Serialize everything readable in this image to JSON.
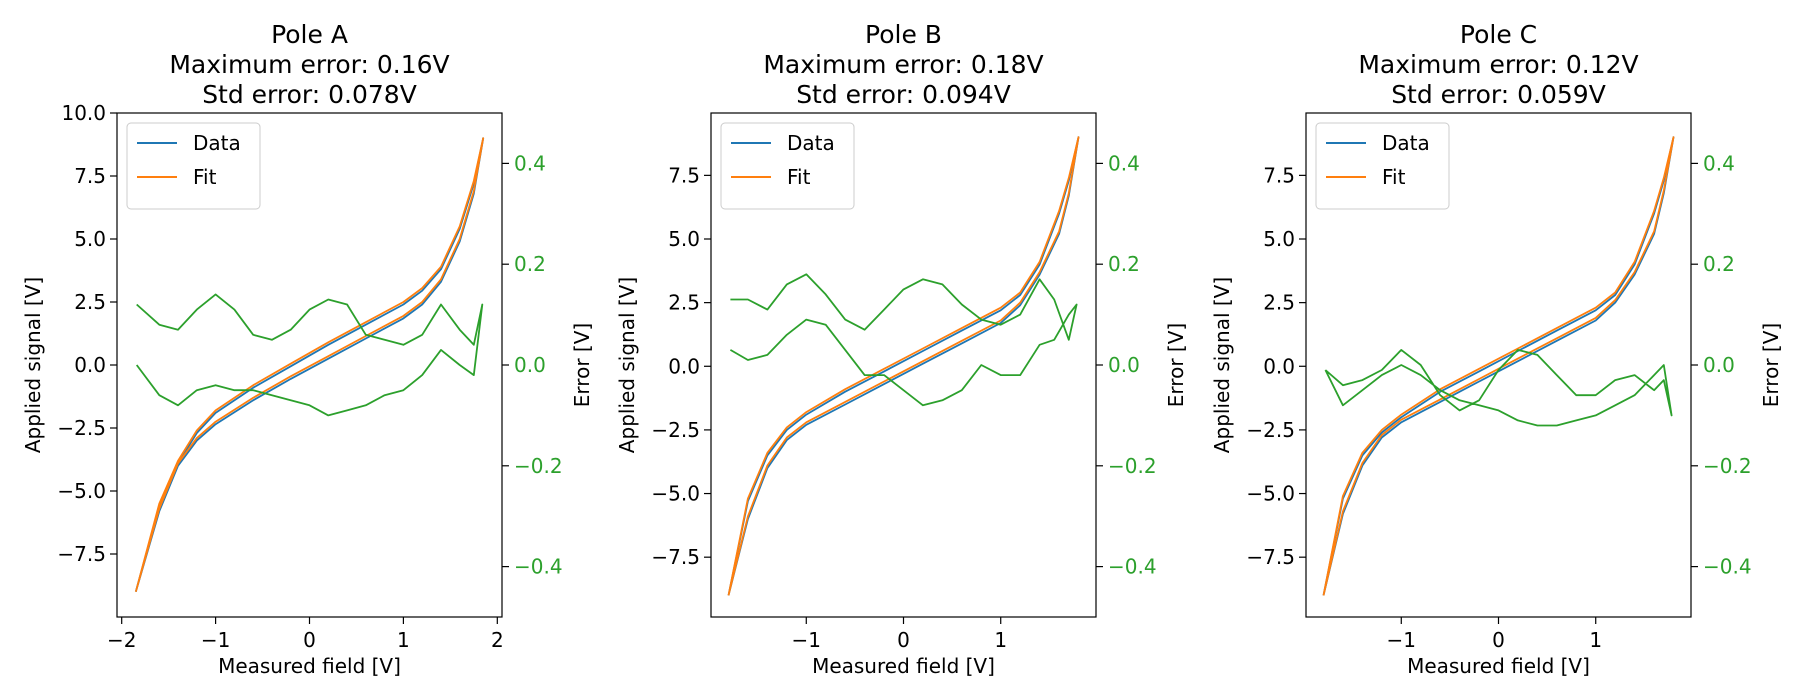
{
  "colors": {
    "data": "#1f77b4",
    "fit": "#ff7f0e",
    "error": "#2ca02c",
    "axis": "#000000",
    "background": "#ffffff"
  },
  "chart_data": [
    {
      "type": "line",
      "title_lines": [
        "Pole A",
        "Maximum error: 0.16V",
        "Std error: 0.078V"
      ],
      "xlabel": "Measured field [V]",
      "ylabel": "Applied signal [V]",
      "ylabel_right": "Error [V]",
      "xlim": [
        -2.05,
        2.05
      ],
      "ylim": [
        -10.0,
        10.0
      ],
      "ylim_right": [
        -0.5,
        0.5
      ],
      "xticks": [
        -2,
        -1,
        0,
        1,
        2
      ],
      "xtick_labels": [
        "−2",
        "−1",
        "0",
        "1",
        "2"
      ],
      "yticks": [
        -7.5,
        -5.0,
        -2.5,
        0.0,
        2.5,
        5.0,
        7.5,
        10.0
      ],
      "ytick_labels": [
        "−7.5",
        "−5.0",
        "−2.5",
        "0.0",
        "2.5",
        "5.0",
        "7.5",
        "10.0"
      ],
      "yticks_right": [
        -0.4,
        -0.2,
        0.0,
        0.2,
        0.4
      ],
      "ytick_labels_right": [
        "−0.4",
        "−0.2",
        "0.0",
        "0.2",
        "0.4"
      ],
      "legend": {
        "position": "top-left",
        "entries": [
          "Data",
          "Fit"
        ]
      },
      "grid": false,
      "series": [
        {
          "name": "Data",
          "axis": "left",
          "x": [
            -1.85,
            -1.6,
            -1.4,
            -1.2,
            -1.0,
            -0.6,
            -0.2,
            0.2,
            0.6,
            1.0,
            1.2,
            1.4,
            1.6,
            1.75,
            1.85,
            1.75,
            1.6,
            1.4,
            1.2,
            1.0,
            0.6,
            0.2,
            -0.2,
            -0.6,
            -1.0,
            -1.2,
            -1.4,
            -1.6,
            -1.85
          ],
          "y": [
            -9.0,
            -5.6,
            -3.9,
            -2.7,
            -1.9,
            -0.9,
            -0.05,
            0.8,
            1.6,
            2.4,
            2.95,
            3.8,
            5.4,
            7.2,
            9.0,
            6.8,
            4.9,
            3.3,
            2.4,
            1.85,
            1.05,
            0.25,
            -0.55,
            -1.4,
            -2.35,
            -3.0,
            -4.0,
            -5.8,
            -9.0
          ]
        },
        {
          "name": "Fit",
          "axis": "left",
          "x": [
            -1.85,
            -1.6,
            -1.4,
            -1.2,
            -1.0,
            -0.6,
            -0.2,
            0.2,
            0.6,
            1.0,
            1.2,
            1.4,
            1.6,
            1.75,
            1.85,
            1.75,
            1.6,
            1.4,
            1.2,
            1.0,
            0.6,
            0.2,
            -0.2,
            -0.6,
            -1.0,
            -1.2,
            -1.4,
            -1.6,
            -1.85
          ],
          "y": [
            -9.0,
            -5.5,
            -3.8,
            -2.6,
            -1.8,
            -0.8,
            0.05,
            0.9,
            1.7,
            2.5,
            3.05,
            3.9,
            5.5,
            7.3,
            9.0,
            6.9,
            5.0,
            3.4,
            2.5,
            1.95,
            1.15,
            0.35,
            -0.45,
            -1.3,
            -2.25,
            -2.9,
            -3.9,
            -5.7,
            -9.0
          ]
        },
        {
          "name": "Error",
          "axis": "right",
          "x": [
            -1.84,
            -1.6,
            -1.4,
            -1.2,
            -1.0,
            -0.8,
            -0.6,
            -0.4,
            -0.2,
            0.0,
            0.2,
            0.4,
            0.6,
            0.8,
            1.0,
            1.2,
            1.4,
            1.6,
            1.75,
            1.84,
            1.75,
            1.6,
            1.4,
            1.2,
            1.0,
            0.8,
            0.6,
            0.4,
            0.2,
            0.0,
            -0.2,
            -0.4,
            -0.6,
            -0.8,
            -1.0,
            -1.2,
            -1.4,
            -1.6,
            -1.84
          ],
          "y": [
            0.12,
            0.08,
            0.07,
            0.11,
            0.14,
            0.11,
            0.06,
            0.05,
            0.07,
            0.11,
            0.13,
            0.12,
            0.06,
            0.05,
            0.04,
            0.06,
            0.12,
            0.07,
            0.04,
            0.12,
            -0.02,
            0.0,
            0.03,
            -0.02,
            -0.05,
            -0.06,
            -0.08,
            -0.09,
            -0.1,
            -0.08,
            -0.07,
            -0.06,
            -0.05,
            -0.05,
            -0.04,
            -0.05,
            -0.08,
            -0.06,
            0.0
          ]
        }
      ]
    },
    {
      "type": "line",
      "title_lines": [
        "Pole B",
        "Maximum error: 0.18V",
        "Std error: 0.094V"
      ],
      "xlabel": "Measured field [V]",
      "ylabel": "Applied signal [V]",
      "ylabel_right": "Error [V]",
      "xlim": [
        -1.98,
        1.98
      ],
      "ylim": [
        -9.85,
        9.95
      ],
      "ylim_right": [
        -0.5,
        0.5
      ],
      "xticks": [
        -1,
        0,
        1
      ],
      "xtick_labels": [
        "−1",
        "0",
        "1"
      ],
      "yticks": [
        -7.5,
        -5.0,
        -2.5,
        0.0,
        2.5,
        5.0,
        7.5
      ],
      "ytick_labels": [
        "−7.5",
        "−5.0",
        "−2.5",
        "0.0",
        "2.5",
        "5.0",
        "7.5"
      ],
      "yticks_right": [
        -0.4,
        -0.2,
        0.0,
        0.2,
        0.4
      ],
      "ytick_labels_right": [
        "−0.4",
        "−0.2",
        "0.0",
        "0.2",
        "0.4"
      ],
      "legend": {
        "position": "top-left",
        "entries": [
          "Data",
          "Fit"
        ]
      },
      "grid": false,
      "series": [
        {
          "name": "Data",
          "axis": "left",
          "x": [
            -1.8,
            -1.6,
            -1.4,
            -1.2,
            -1.0,
            -0.6,
            -0.2,
            0.2,
            0.6,
            1.0,
            1.2,
            1.4,
            1.6,
            1.7,
            1.8,
            1.7,
            1.6,
            1.4,
            1.2,
            1.0,
            0.6,
            0.2,
            -0.2,
            -0.6,
            -1.0,
            -1.2,
            -1.4,
            -1.6,
            -1.8
          ],
          "y": [
            -9.0,
            -5.3,
            -3.5,
            -2.5,
            -1.9,
            -1.0,
            -0.2,
            0.6,
            1.4,
            2.2,
            2.8,
            4.0,
            6.0,
            7.3,
            9.0,
            6.7,
            5.2,
            3.6,
            2.4,
            1.7,
            0.9,
            0.1,
            -0.7,
            -1.5,
            -2.3,
            -2.9,
            -4.0,
            -6.0,
            -9.0
          ]
        },
        {
          "name": "Fit",
          "axis": "left",
          "x": [
            -1.8,
            -1.6,
            -1.4,
            -1.2,
            -1.0,
            -0.6,
            -0.2,
            0.2,
            0.6,
            1.0,
            1.2,
            1.4,
            1.6,
            1.7,
            1.8,
            1.7,
            1.6,
            1.4,
            1.2,
            1.0,
            0.6,
            0.2,
            -0.2,
            -0.6,
            -1.0,
            -1.2,
            -1.4,
            -1.6,
            -1.8
          ],
          "y": [
            -9.0,
            -5.2,
            -3.4,
            -2.4,
            -1.8,
            -0.9,
            -0.1,
            0.7,
            1.5,
            2.3,
            2.9,
            4.1,
            6.1,
            7.4,
            9.0,
            6.8,
            5.3,
            3.7,
            2.5,
            1.8,
            1.0,
            0.2,
            -0.6,
            -1.4,
            -2.2,
            -2.8,
            -3.9,
            -5.9,
            -9.0
          ]
        },
        {
          "name": "Error",
          "axis": "right",
          "x": [
            -1.78,
            -1.6,
            -1.4,
            -1.2,
            -1.0,
            -0.8,
            -0.6,
            -0.4,
            -0.2,
            0.0,
            0.2,
            0.4,
            0.6,
            0.8,
            1.0,
            1.2,
            1.4,
            1.55,
            1.7,
            1.78,
            1.7,
            1.55,
            1.4,
            1.2,
            1.0,
            0.8,
            0.6,
            0.4,
            0.2,
            0.0,
            -0.2,
            -0.4,
            -0.6,
            -0.8,
            -1.0,
            -1.2,
            -1.4,
            -1.6,
            -1.78
          ],
          "y": [
            0.13,
            0.13,
            0.11,
            0.16,
            0.18,
            0.14,
            0.09,
            0.07,
            0.11,
            0.15,
            0.17,
            0.16,
            0.12,
            0.09,
            0.08,
            0.1,
            0.17,
            0.13,
            0.05,
            0.12,
            0.1,
            0.05,
            0.04,
            -0.02,
            -0.02,
            0.0,
            -0.05,
            -0.07,
            -0.08,
            -0.05,
            -0.02,
            -0.02,
            0.03,
            0.08,
            0.09,
            0.06,
            0.02,
            0.01,
            0.03
          ]
        }
      ]
    },
    {
      "type": "line",
      "title_lines": [
        "Pole C",
        "Maximum error: 0.12V",
        "Std error: 0.059V"
      ],
      "xlabel": "Measured field [V]",
      "ylabel": "Applied signal [V]",
      "ylabel_right": "Error [V]",
      "xlim": [
        -1.98,
        1.98
      ],
      "ylim": [
        -9.85,
        9.95
      ],
      "ylim_right": [
        -0.5,
        0.5
      ],
      "xticks": [
        -1,
        0,
        1
      ],
      "xtick_labels": [
        "−1",
        "0",
        "1"
      ],
      "yticks": [
        -7.5,
        -5.0,
        -2.5,
        0.0,
        2.5,
        5.0,
        7.5
      ],
      "ytick_labels": [
        "−7.5",
        "−5.0",
        "−2.5",
        "0.0",
        "2.5",
        "5.0",
        "7.5"
      ],
      "yticks_right": [
        -0.4,
        -0.2,
        0.0,
        0.2,
        0.4
      ],
      "ytick_labels_right": [
        "−0.4",
        "−0.2",
        "0.0",
        "0.2",
        "0.4"
      ],
      "legend": {
        "position": "top-left",
        "entries": [
          "Data",
          "Fit"
        ]
      },
      "grid": false,
      "series": [
        {
          "name": "Data",
          "axis": "left",
          "x": [
            -1.8,
            -1.6,
            -1.4,
            -1.2,
            -1.0,
            -0.6,
            -0.2,
            0.2,
            0.6,
            1.0,
            1.2,
            1.4,
            1.6,
            1.7,
            1.8,
            1.7,
            1.6,
            1.4,
            1.2,
            1.0,
            0.6,
            0.2,
            -0.2,
            -0.6,
            -1.0,
            -1.2,
            -1.4,
            -1.6,
            -1.8
          ],
          "y": [
            -9.0,
            -5.2,
            -3.5,
            -2.6,
            -2.0,
            -1.0,
            -0.2,
            0.6,
            1.4,
            2.2,
            2.8,
            4.0,
            6.0,
            7.3,
            9.0,
            6.8,
            5.2,
            3.6,
            2.5,
            1.8,
            1.0,
            0.2,
            -0.6,
            -1.4,
            -2.2,
            -2.8,
            -3.9,
            -5.8,
            -9.0
          ]
        },
        {
          "name": "Fit",
          "axis": "left",
          "x": [
            -1.8,
            -1.6,
            -1.4,
            -1.2,
            -1.0,
            -0.6,
            -0.2,
            0.2,
            0.6,
            1.0,
            1.2,
            1.4,
            1.6,
            1.7,
            1.8,
            1.7,
            1.6,
            1.4,
            1.2,
            1.0,
            0.6,
            0.2,
            -0.2,
            -0.6,
            -1.0,
            -1.2,
            -1.4,
            -1.6,
            -1.8
          ],
          "y": [
            -9.0,
            -5.1,
            -3.4,
            -2.5,
            -1.9,
            -0.9,
            -0.1,
            0.7,
            1.5,
            2.3,
            2.9,
            4.1,
            6.1,
            7.4,
            9.0,
            6.9,
            5.3,
            3.7,
            2.6,
            1.9,
            1.1,
            0.3,
            -0.5,
            -1.3,
            -2.1,
            -2.7,
            -3.8,
            -5.7,
            -9.0
          ]
        },
        {
          "name": "Error",
          "axis": "right",
          "x": [
            -1.78,
            -1.6,
            -1.4,
            -1.2,
            -1.0,
            -0.8,
            -0.6,
            -0.4,
            -0.2,
            0.0,
            0.2,
            0.4,
            0.6,
            0.8,
            1.0,
            1.2,
            1.4,
            1.6,
            1.7,
            1.78,
            1.7,
            1.6,
            1.4,
            1.2,
            1.0,
            0.8,
            0.6,
            0.4,
            0.2,
            0.0,
            -0.2,
            -0.4,
            -0.6,
            -0.8,
            -1.0,
            -1.2,
            -1.4,
            -1.6,
            -1.78
          ],
          "y": [
            -0.01,
            -0.04,
            -0.03,
            -0.01,
            0.03,
            0.0,
            -0.06,
            -0.09,
            -0.07,
            -0.01,
            0.03,
            0.02,
            -0.02,
            -0.06,
            -0.06,
            -0.03,
            -0.02,
            -0.05,
            -0.03,
            -0.1,
            0.0,
            -0.02,
            -0.06,
            -0.08,
            -0.1,
            -0.11,
            -0.12,
            -0.12,
            -0.11,
            -0.09,
            -0.08,
            -0.07,
            -0.05,
            -0.02,
            0.0,
            -0.02,
            -0.05,
            -0.08,
            -0.01
          ]
        }
      ]
    }
  ]
}
